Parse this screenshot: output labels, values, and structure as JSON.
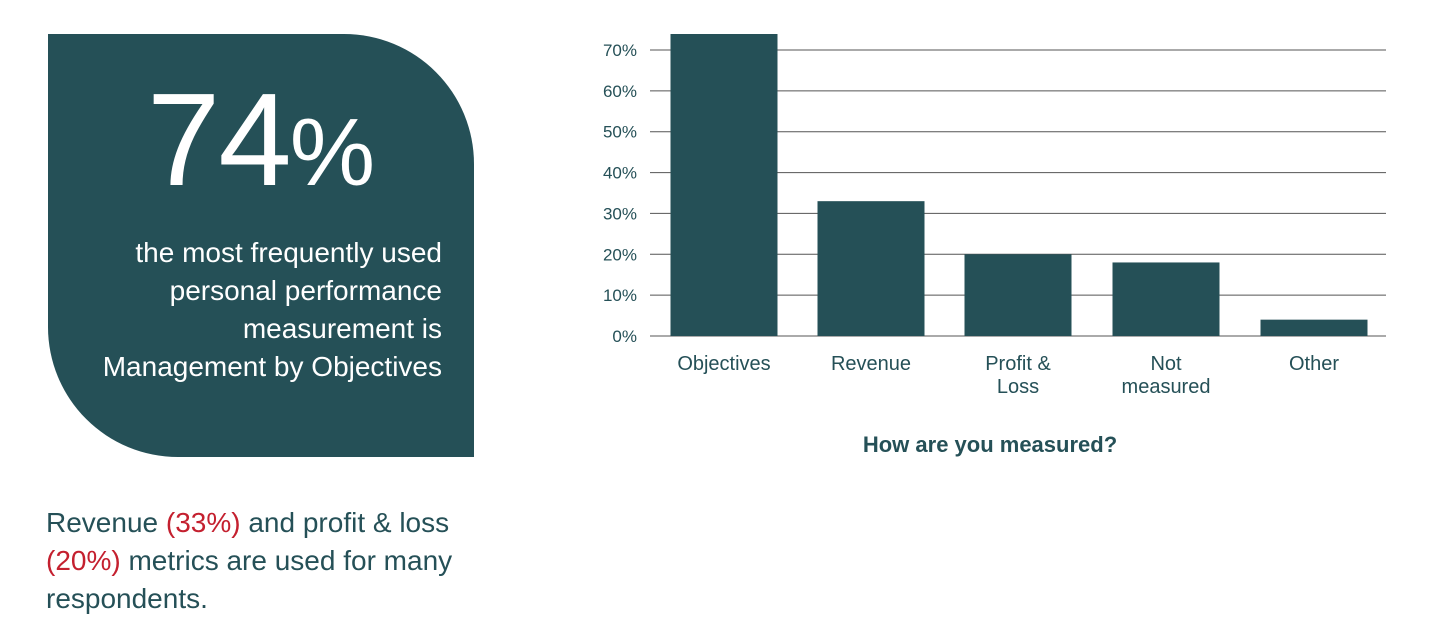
{
  "stat": {
    "value": "74",
    "value_suffix": "%",
    "caption_lines": [
      "the most frequently used",
      "personal performance",
      "measurement is",
      "Management by Objectives"
    ]
  },
  "summary": {
    "part1": "Revenue ",
    "hl1": "(33%)",
    "part2": " and profit & loss ",
    "hl2": "(20%)",
    "part3": " metrics are used for many respondents."
  },
  "colors": {
    "primary": "#255057",
    "highlight": "#c4202f",
    "gridline": "#555555"
  },
  "chart_data": {
    "type": "bar",
    "title": "How are you measured?",
    "categories": [
      [
        "Objectives"
      ],
      [
        "Revenue"
      ],
      [
        "Profit &",
        "Loss"
      ],
      [
        "Not",
        "measured"
      ],
      [
        "Other"
      ]
    ],
    "values": [
      74,
      33,
      20,
      18,
      4
    ],
    "ylim": [
      0,
      70
    ],
    "yticks": [
      0,
      10,
      20,
      30,
      40,
      50,
      60,
      70
    ],
    "ytick_labels": [
      "0%",
      "10%",
      "20%",
      "30%",
      "40%",
      "50%",
      "60%",
      "70%"
    ],
    "grid": true,
    "legend": false
  }
}
